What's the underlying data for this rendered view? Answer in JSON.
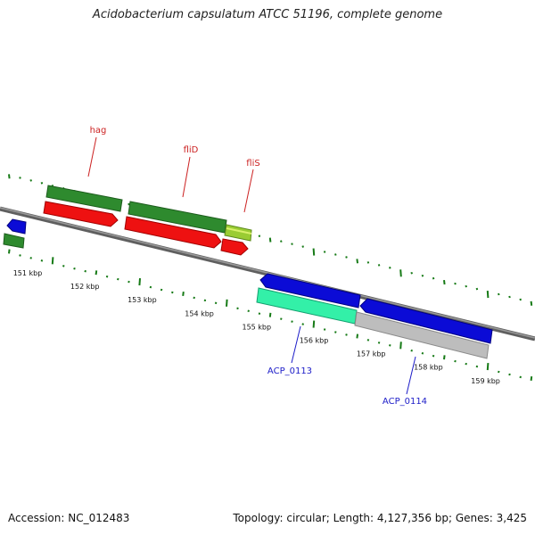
{
  "title": "Acidobacterium capsulatum ATCC 51196, complete genome",
  "footer": {
    "accession": "Accession: NC_012483",
    "summary": "Topology: circular; Length: 4,127,356 bp; Genes: 3,425"
  },
  "colors": {
    "backbone": "#7b7b7b",
    "tick": "#167a16",
    "gene_forward": "#2e8a2e",
    "cds_forward": "#ee1111",
    "gene_reverse": "#0b0bd6",
    "cds_aqua": "#33f0a8",
    "cds_gray": "#bdbdbd",
    "tag_red": "#cc2222",
    "tag_blue": "#1c1cc8"
  },
  "axis": {
    "labels": [
      "151 kbp",
      "152 kbp",
      "153 kbp",
      "154 kbp",
      "155 kbp",
      "156 kbp",
      "157 kbp",
      "158 kbp",
      "159 kbp"
    ]
  },
  "gene_labels": {
    "hag": "hag",
    "fliD": "fliD",
    "fliS": "fliS",
    "acp0113": "ACP_0113",
    "acp0114": "ACP_0114"
  }
}
